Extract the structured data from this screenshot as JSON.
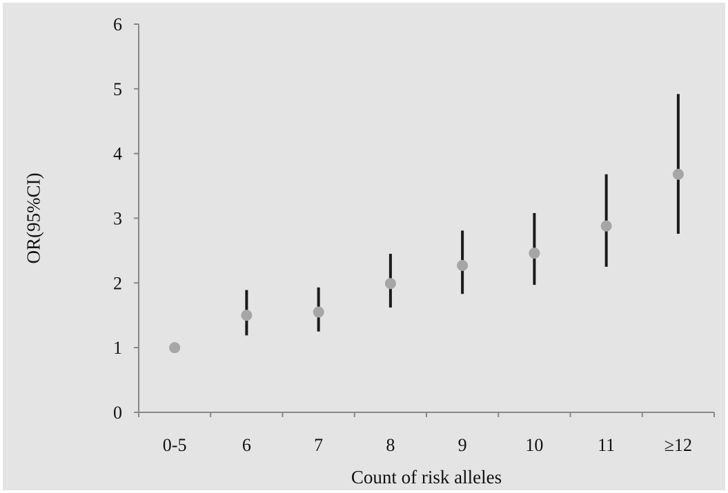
{
  "chart_data": {
    "type": "scatter",
    "title": "",
    "xlabel": "Count of risk alleles",
    "ylabel": "OR(95%CI)",
    "ylim": [
      0,
      6
    ],
    "yticks": [
      "0",
      "1",
      "2",
      "3",
      "4",
      "5",
      "6"
    ],
    "categories": [
      "0-5",
      "6",
      "7",
      "8",
      "9",
      "10",
      "11",
      "≥12"
    ],
    "series": [
      {
        "values": [
          1.0,
          1.5,
          1.55,
          1.99,
          2.27,
          2.46,
          2.88,
          3.68
        ],
        "ci_lower": [
          null,
          1.19,
          1.25,
          1.62,
          1.83,
          1.97,
          2.25,
          2.76
        ],
        "ci_upper": [
          null,
          1.89,
          1.93,
          2.45,
          2.81,
          3.08,
          3.68,
          4.92
        ]
      }
    ],
    "grid": false,
    "legend": "none",
    "colors": {
      "point": "#a6a6a6",
      "error_bar": "#1a1a1a",
      "axis": "#888888",
      "background": "#e4e4e4"
    }
  }
}
